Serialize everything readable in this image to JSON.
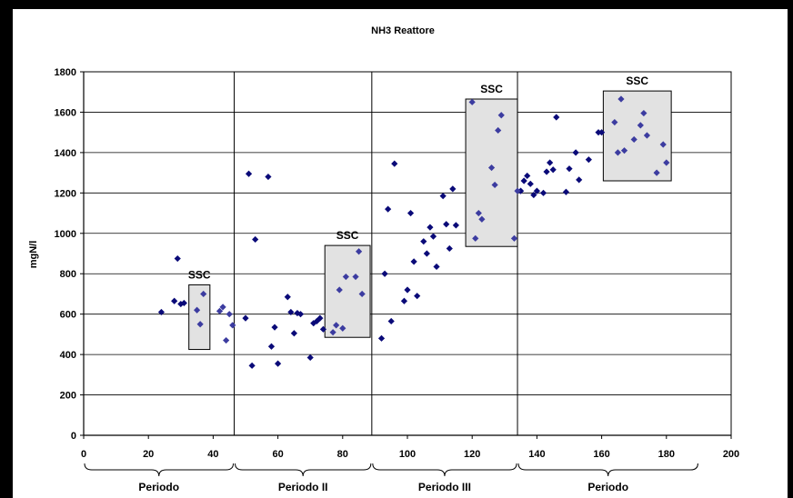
{
  "chart_data": {
    "type": "scatter",
    "title": "NH3 Reattore",
    "xlabel": "",
    "ylabel": "mgN/l",
    "xlim": [
      0,
      200
    ],
    "ylim": [
      0,
      1800
    ],
    "xticks": [
      0,
      20,
      40,
      60,
      80,
      100,
      120,
      140,
      160,
      180,
      200
    ],
    "yticks": [
      0,
      200,
      400,
      600,
      800,
      1000,
      1200,
      1400,
      1600,
      1800
    ],
    "grid": true,
    "colors": {
      "points": "#0a0a78",
      "ssc_points": "#3c3ca0",
      "ssc_box": "#e2e2e2"
    },
    "period_dividers": [
      46.5,
      89,
      134
    ],
    "periods": [
      {
        "label": "Periodo",
        "range": [
          0,
          46.5
        ]
      },
      {
        "label": "Periodo  II",
        "range": [
          46.5,
          89
        ]
      },
      {
        "label": "Periodo III",
        "range": [
          89,
          134
        ]
      },
      {
        "label": "Periodo",
        "range": [
          134,
          190
        ]
      }
    ],
    "ssc_boxes": [
      {
        "label": "SSC",
        "x": [
          32.5,
          39
        ],
        "y": [
          425,
          745
        ]
      },
      {
        "label": "SSC",
        "x": [
          74.5,
          88.5
        ],
        "y": [
          485,
          940
        ]
      },
      {
        "label": "SSC",
        "x": [
          118,
          134
        ],
        "y": [
          935,
          1665
        ]
      },
      {
        "label": "SSC",
        "x": [
          160.5,
          181.5
        ],
        "y": [
          1260,
          1705
        ]
      }
    ],
    "series": [
      {
        "points": [
          [
            24,
            610
          ],
          [
            28,
            665
          ],
          [
            29,
            875
          ],
          [
            30,
            650
          ],
          [
            31,
            655
          ],
          [
            50,
            580
          ],
          [
            51,
            1295
          ],
          [
            52,
            345
          ],
          [
            53,
            970
          ],
          [
            57,
            1280
          ],
          [
            58,
            440
          ],
          [
            59,
            535
          ],
          [
            60,
            355
          ],
          [
            63,
            685
          ],
          [
            64,
            610
          ],
          [
            65,
            505
          ],
          [
            66,
            605
          ],
          [
            67,
            600
          ],
          [
            70,
            385
          ],
          [
            71,
            555
          ],
          [
            72,
            565
          ],
          [
            73,
            580
          ],
          [
            74,
            525
          ],
          [
            92,
            480
          ],
          [
            93,
            800
          ],
          [
            94,
            1120
          ],
          [
            95,
            565
          ],
          [
            96,
            1345
          ],
          [
            99,
            665
          ],
          [
            100,
            720
          ],
          [
            101,
            1100
          ],
          [
            102,
            860
          ],
          [
            103,
            690
          ],
          [
            105,
            960
          ],
          [
            106,
            900
          ],
          [
            107,
            1030
          ],
          [
            108,
            985
          ],
          [
            109,
            835
          ],
          [
            111,
            1185
          ],
          [
            112,
            1045
          ],
          [
            113,
            925
          ],
          [
            114,
            1220
          ],
          [
            115,
            1040
          ],
          [
            135,
            1210
          ],
          [
            136,
            1260
          ],
          [
            137,
            1285
          ],
          [
            138,
            1245
          ],
          [
            139,
            1190
          ],
          [
            140,
            1210
          ],
          [
            142,
            1200
          ],
          [
            143,
            1305
          ],
          [
            144,
            1350
          ],
          [
            145,
            1315
          ],
          [
            146,
            1575
          ],
          [
            149,
            1205
          ],
          [
            150,
            1320
          ],
          [
            152,
            1400
          ],
          [
            153,
            1265
          ],
          [
            156,
            1365
          ],
          [
            159,
            1500
          ],
          [
            160,
            1500
          ]
        ]
      },
      {
        "points": [
          [
            35,
            620
          ],
          [
            36,
            550
          ],
          [
            37,
            700
          ],
          [
            42,
            615
          ],
          [
            43,
            635
          ],
          [
            44,
            470
          ],
          [
            45,
            600
          ],
          [
            46,
            545
          ],
          [
            77,
            510
          ],
          [
            78,
            545
          ],
          [
            79,
            720
          ],
          [
            80,
            530
          ],
          [
            81,
            785
          ],
          [
            84,
            785
          ],
          [
            85,
            910
          ],
          [
            86,
            700
          ],
          [
            120,
            1650
          ],
          [
            121,
            975
          ],
          [
            122,
            1100
          ],
          [
            123,
            1070
          ],
          [
            126,
            1325
          ],
          [
            127,
            1240
          ],
          [
            128,
            1510
          ],
          [
            129,
            1585
          ],
          [
            133,
            975
          ],
          [
            134,
            1210
          ],
          [
            164,
            1550
          ],
          [
            165,
            1400
          ],
          [
            166,
            1665
          ],
          [
            167,
            1410
          ],
          [
            170,
            1465
          ],
          [
            172,
            1535
          ],
          [
            173,
            1595
          ],
          [
            174,
            1485
          ],
          [
            177,
            1300
          ],
          [
            179,
            1440
          ],
          [
            180,
            1350
          ]
        ]
      }
    ]
  }
}
